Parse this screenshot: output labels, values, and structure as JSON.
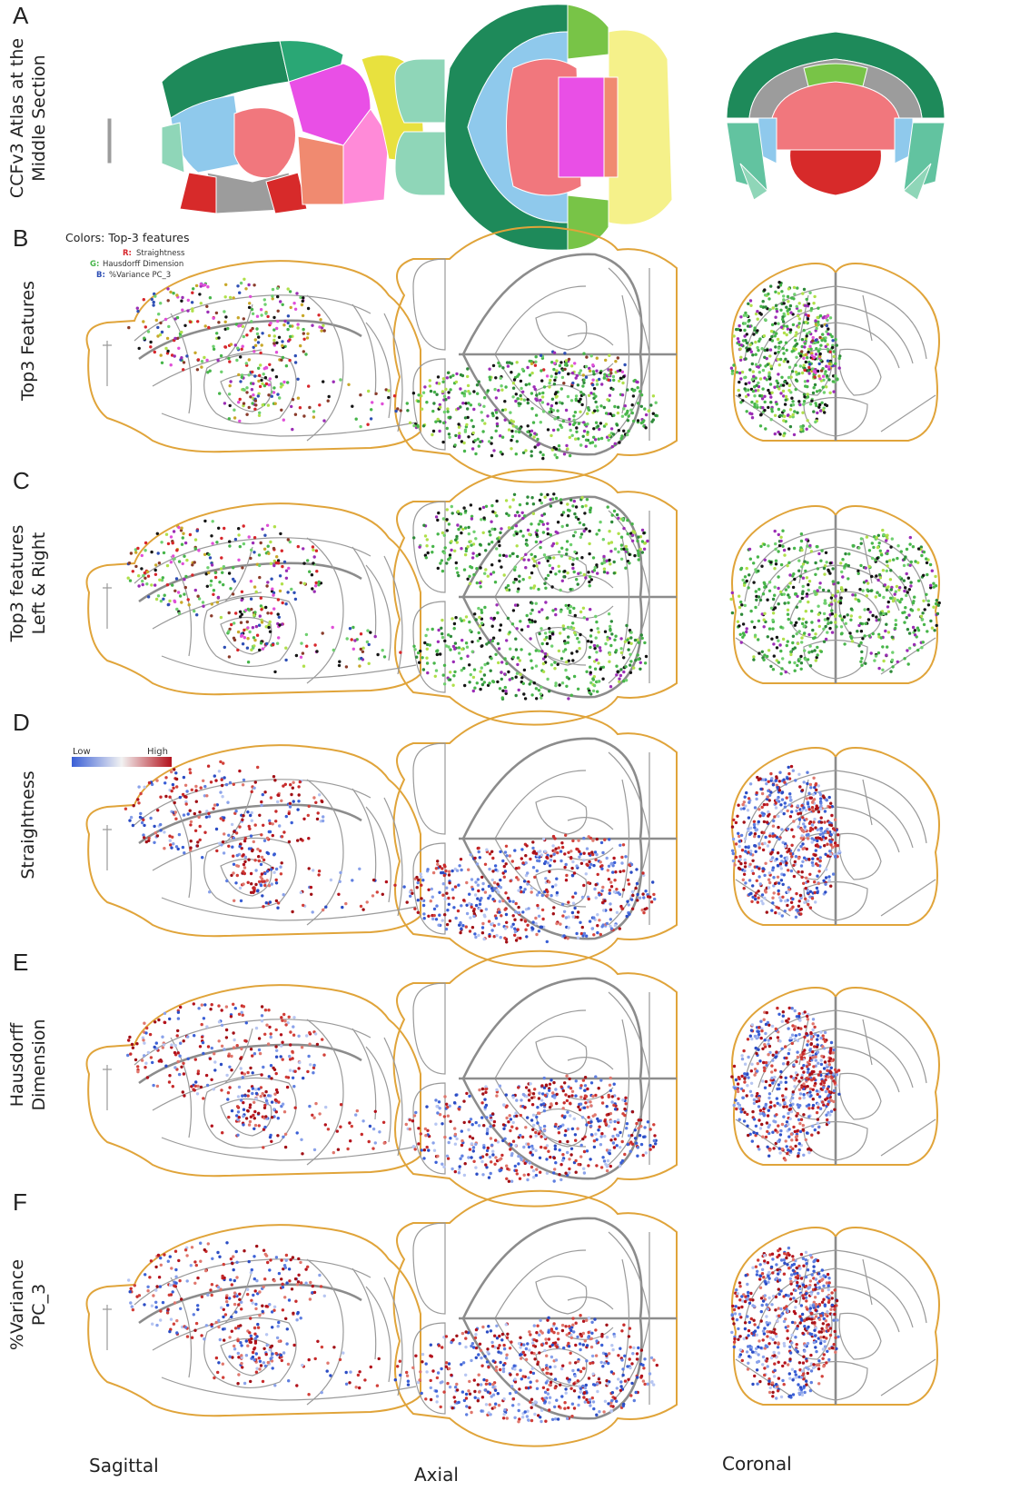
{
  "panels": [
    {
      "letter": "A",
      "label_lines": [
        "CCFv3 Atlas at the",
        "Middle Section"
      ],
      "mode": "atlas"
    },
    {
      "letter": "B",
      "label_lines": [
        "Top3 Features"
      ],
      "mode": "rgb_half"
    },
    {
      "letter": "C",
      "label_lines": [
        "Top3 features",
        "Left & Right"
      ],
      "mode": "rgb_full"
    },
    {
      "letter": "D",
      "label_lines": [
        "Straightness"
      ],
      "mode": "heat"
    },
    {
      "letter": "E",
      "label_lines": [
        "Hausdorff",
        "Dimension"
      ],
      "mode": "heat"
    },
    {
      "letter": "F",
      "label_lines": [
        "%Variance",
        "PC_3"
      ],
      "mode": "heat"
    }
  ],
  "legend_top3": {
    "title": "Colors: Top-3 features",
    "items": [
      {
        "key": "R:",
        "label": "Straightness",
        "color": "#d7262b"
      },
      {
        "key": "G:",
        "label": "Hausdorff Dimension",
        "color": "#47b54a"
      },
      {
        "key": "B:",
        "label": "%Variance PC_3",
        "color": "#2e4fb5"
      }
    ]
  },
  "colorbar": {
    "low_label": "Low",
    "high_label": "High",
    "low_color": "#3a5fd6",
    "mid_color": "#f2f2f2",
    "high_color": "#b3121c"
  },
  "view_labels": [
    "Sagittal",
    "Axial",
    "Coronal"
  ],
  "colors": {
    "outline": "#e0a43a",
    "structure_lines": "#9a9a9a",
    "atlas_fills": [
      "#1e8a5a",
      "#2aa775",
      "#62c3a0",
      "#8fd6b8",
      "#8fc9ec",
      "#f1777d",
      "#e8e13e",
      "#f5f18a",
      "#e94fe6",
      "#ff8ad8",
      "#d72a2a",
      "#9c9c9c",
      "#78c447",
      "#4f8f6a",
      "#f08a70"
    ]
  }
}
